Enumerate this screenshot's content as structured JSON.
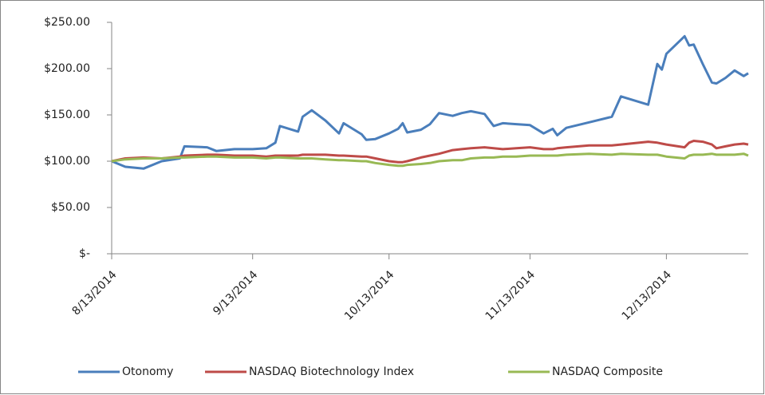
{
  "chart_data": {
    "type": "line",
    "x": [
      "8/13/2014",
      "8/16/2014",
      "8/20/2014",
      "8/24/2014",
      "8/28/2014",
      "8/29/2014",
      "9/3/2014",
      "9/5/2014",
      "9/9/2014",
      "9/13/2014",
      "9/16/2014",
      "9/18/2014",
      "9/19/2014",
      "9/23/2014",
      "9/24/2014",
      "9/26/2014",
      "9/29/2014",
      "10/2/2014",
      "10/3/2014",
      "10/7/2014",
      "10/8/2014",
      "10/10/2014",
      "10/13/2014",
      "10/15/2014",
      "10/16/2014",
      "10/17/2014",
      "10/20/2014",
      "10/22/2014",
      "10/24/2014",
      "10/27/2014",
      "10/29/2014",
      "10/31/2014",
      "11/3/2014",
      "11/5/2014",
      "11/7/2014",
      "11/10/2014",
      "11/13/2014",
      "11/16/2014",
      "11/18/2014",
      "11/19/2014",
      "11/21/2014",
      "11/26/2014",
      "12/1/2014",
      "12/3/2014",
      "12/9/2014",
      "12/11/2014",
      "12/12/2014",
      "12/13/2014",
      "12/17/2014",
      "12/18/2014",
      "12/19/2014",
      "12/21/2014",
      "12/23/2014",
      "12/24/2014",
      "12/26/2014",
      "12/28/2014",
      "12/30/2014",
      "12/31/2014"
    ],
    "series": [
      {
        "name": "Otonomy",
        "color": "#4a7ebb",
        "values": [
          100,
          94,
          92,
          100,
          103,
          116,
          115,
          111,
          113,
          113,
          114,
          120,
          138,
          132,
          148,
          155,
          144,
          130,
          141,
          129,
          123,
          124,
          130,
          135,
          141,
          131,
          134,
          140,
          152,
          149,
          152,
          154,
          151,
          138,
          141,
          140,
          139,
          130,
          135,
          128,
          136,
          142,
          148,
          170,
          161,
          205,
          199,
          216,
          235,
          225,
          226,
          205,
          185,
          184,
          190,
          198,
          192,
          195
        ]
      },
      {
        "name": "NASDAQ Biotechnology Index",
        "color": "#be4b48",
        "values": [
          100,
          103,
          104,
          103,
          105,
          106,
          107,
          107,
          106,
          106,
          105,
          106,
          106,
          106,
          107,
          107,
          107,
          106,
          106,
          105,
          105,
          103,
          100,
          99,
          99,
          100,
          104,
          106,
          108,
          112,
          113,
          114,
          115,
          114,
          113,
          114,
          115,
          113,
          113,
          114,
          115,
          117,
          117,
          118,
          121,
          120,
          119,
          118,
          115,
          120,
          122,
          121,
          118,
          114,
          116,
          118,
          119,
          118
        ]
      },
      {
        "name": "NASDAQ Composite",
        "color": "#98b954",
        "values": [
          100,
          102,
          103,
          103,
          104,
          104,
          105,
          105,
          104,
          104,
          103,
          104,
          104,
          103,
          103,
          103,
          102,
          101,
          101,
          100,
          100,
          98,
          96,
          95,
          95,
          96,
          97,
          98,
          100,
          101,
          101,
          103,
          104,
          104,
          105,
          105,
          106,
          106,
          106,
          106,
          107,
          108,
          107,
          108,
          107,
          107,
          106,
          105,
          103,
          106,
          107,
          107,
          108,
          107,
          107,
          107,
          108,
          106
        ]
      }
    ],
    "xlim": [
      "8/13/2014",
      "12/31/2014"
    ],
    "xticks": [
      "8/13/2014",
      "9/13/2014",
      "10/13/2014",
      "11/13/2014",
      "12/13/2014"
    ],
    "ylim": [
      0,
      250
    ],
    "yticks": [
      {
        "value": 0,
        "label": "$-"
      },
      {
        "value": 50,
        "label": "$50.00"
      },
      {
        "value": 100,
        "label": "$100.00"
      },
      {
        "value": 150,
        "label": "$150.00"
      },
      {
        "value": 200,
        "label": "$200.00"
      },
      {
        "value": 250,
        "label": "$250.00"
      }
    ],
    "grid": false,
    "legend": "bottom"
  }
}
